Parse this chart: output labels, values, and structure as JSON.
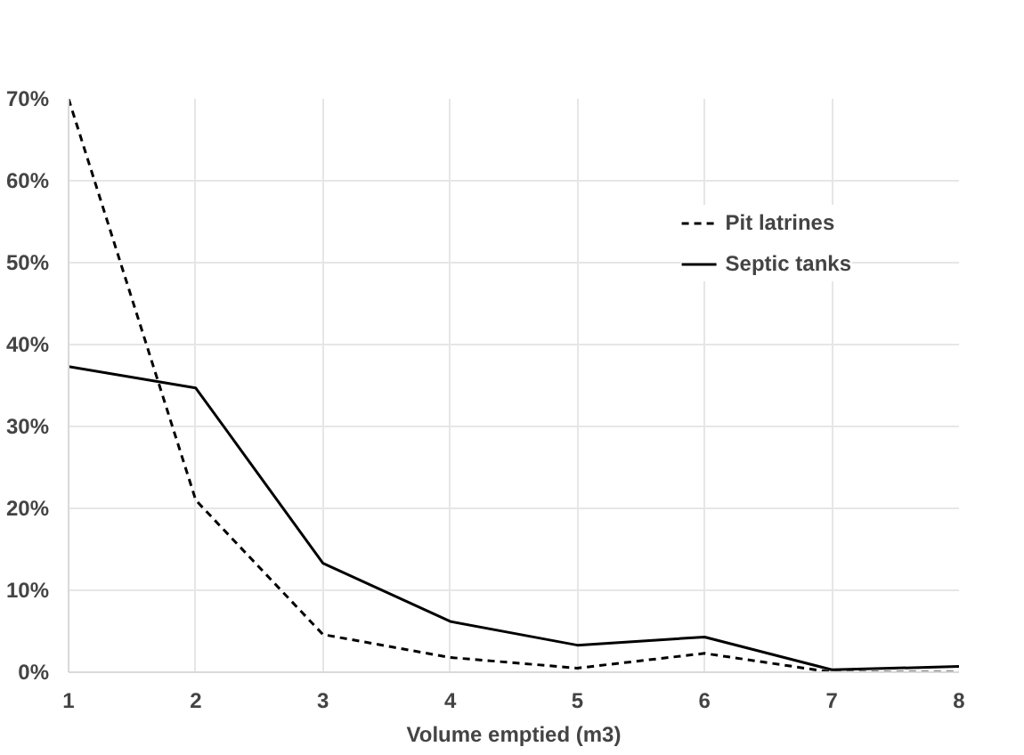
{
  "chart_data": {
    "type": "line",
    "xlabel": "Volume emptied (m3)",
    "x": [
      1,
      2,
      3,
      4,
      5,
      6,
      7,
      8
    ],
    "series": [
      {
        "name": "Pit latrines",
        "color": "#000000",
        "line_style": "dashed",
        "values": [
          70,
          21,
          4.6,
          1.8,
          0.5,
          2.3,
          0,
          0
        ]
      },
      {
        "name": "Septic tanks",
        "color": "#000000",
        "line_style": "solid",
        "values": [
          37.3,
          34.7,
          13.3,
          6.2,
          3.3,
          4.3,
          0.3,
          0.7
        ]
      }
    ],
    "xlim": [
      1,
      8
    ],
    "xticks": [
      1,
      2,
      3,
      4,
      5,
      6,
      7,
      8
    ],
    "ylim": [
      0,
      70
    ],
    "yticks": [
      {
        "value": 0,
        "label": "0%"
      },
      {
        "value": 10,
        "label": "10%"
      },
      {
        "value": 20,
        "label": "20%"
      },
      {
        "value": 30,
        "label": "30%"
      },
      {
        "value": 40,
        "label": "40%"
      },
      {
        "value": 50,
        "label": "50%"
      },
      {
        "value": 60,
        "label": "60%"
      },
      {
        "value": 70,
        "label": "70%"
      }
    ],
    "grid": true,
    "legend": "top right"
  }
}
